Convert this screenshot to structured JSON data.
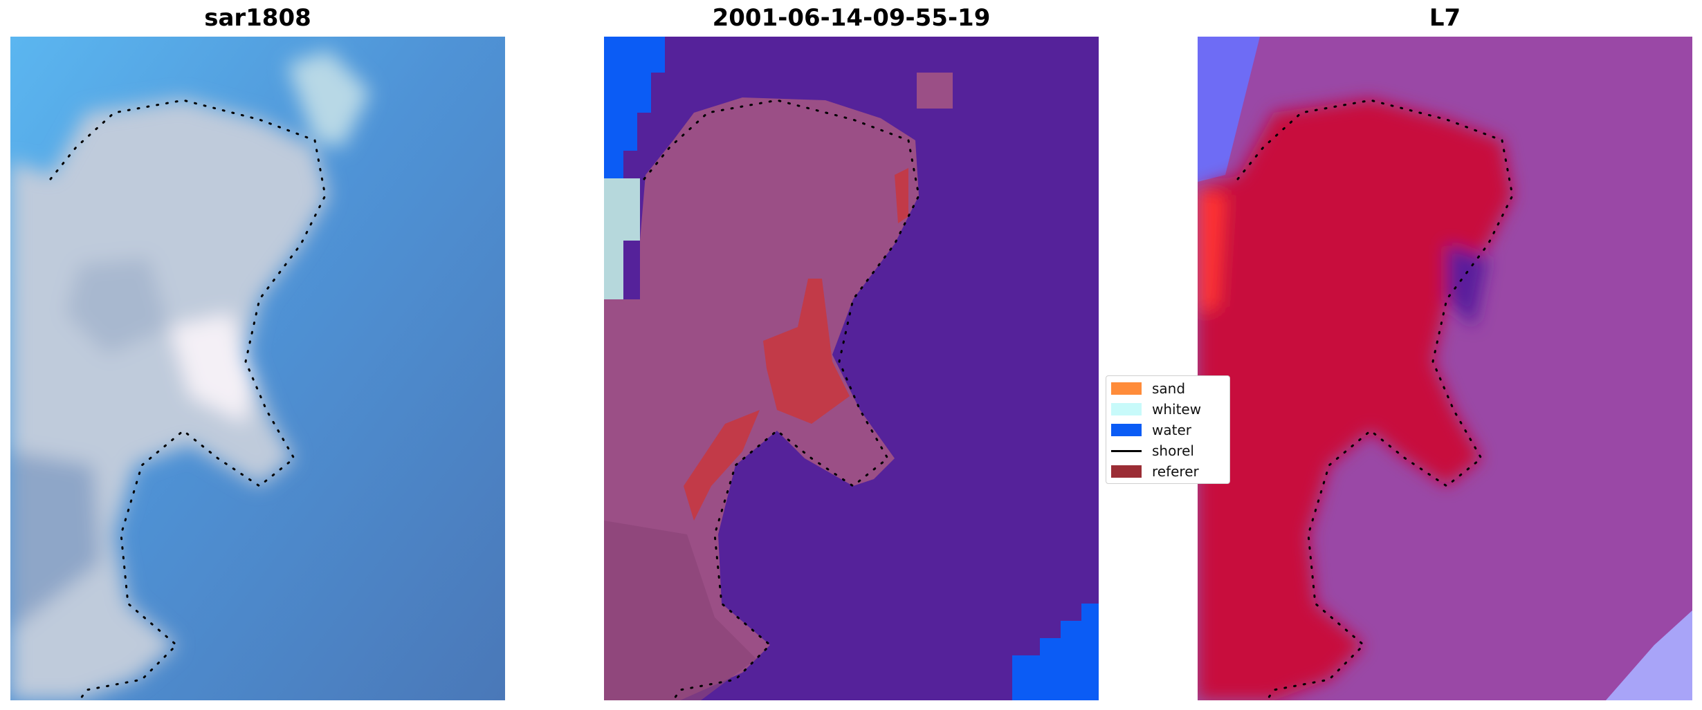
{
  "panels": [
    {
      "title": "sar1808"
    },
    {
      "title": "2001-06-14-09-55-19"
    },
    {
      "title": "L7"
    }
  ],
  "legend": {
    "items": [
      {
        "label": "sand",
        "color": "#ff8c3a",
        "kind": "swatch"
      },
      {
        "label": "whitew",
        "color": "#c8fafa",
        "kind": "swatch"
      },
      {
        "label": "water",
        "color": "#0b5cf5",
        "kind": "swatch"
      },
      {
        "label": "shorel",
        "color": "#000000",
        "kind": "line"
      },
      {
        "label": "referer",
        "color": "#9b2d35",
        "kind": "swatch"
      }
    ]
  },
  "colors": {
    "rgb_water": "#4f86c6",
    "rgb_land": "#c2ccd9",
    "class_water": "#55229a",
    "class_land": "#9b4f86",
    "class_ref": "#c23a48",
    "class_water_edge": "#0b5cf5",
    "class_whitewater": "#b6d8dc",
    "l7_bg": "#9a48a6",
    "l7_land": "#c8103c",
    "l7_blue": "#6e6cf5"
  }
}
